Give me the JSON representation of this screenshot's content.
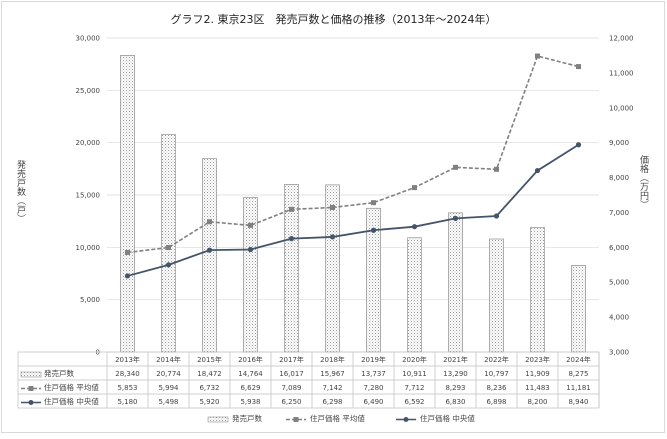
{
  "chart_data": {
    "type": "bar+line",
    "title": "グラフ2. 東京23区　発売戸数と価格の推移（2013年～2024年）",
    "ylabel_left": "発売戸数（戸）",
    "ylabel_right": "価格（万円）",
    "ylim_left": [
      0,
      30000
    ],
    "ylim_right": [
      3000,
      12000
    ],
    "left_ticks": [
      "0",
      "5,000",
      "10,000",
      "15,000",
      "20,000",
      "25,000",
      "30,000"
    ],
    "right_ticks": [
      "3,000",
      "4,000",
      "5,000",
      "6,000",
      "7,000",
      "8,000",
      "9,000",
      "10,000",
      "11,000",
      "12,000"
    ],
    "grid": true,
    "legend": "bottom",
    "categories": [
      "2013年",
      "2014年",
      "2015年",
      "2016年",
      "2017年",
      "2018年",
      "2019年",
      "2020年",
      "2021年",
      "2022年",
      "2023年",
      "2024年"
    ],
    "series": [
      {
        "name": "発売戸数",
        "type": "bar",
        "axis": "left",
        "values": [
          28340,
          20774,
          18472,
          14764,
          16017,
          15967,
          13737,
          10911,
          13290,
          10797,
          11909,
          8275
        ],
        "labels": [
          "28,340",
          "20,774",
          "18,472",
          "14,764",
          "16,017",
          "15,967",
          "13,737",
          "10,911",
          "13,290",
          "10,797",
          "11,909",
          "8,275"
        ]
      },
      {
        "name": "住戸価格 平均値",
        "type": "line",
        "axis": "right",
        "color": "#808080",
        "dashed": true,
        "values": [
          5853,
          5994,
          6732,
          6629,
          7089,
          7142,
          7280,
          7712,
          8293,
          8236,
          11483,
          11181
        ],
        "labels": [
          "5,853",
          "5,994",
          "6,732",
          "6,629",
          "7,089",
          "7,142",
          "7,280",
          "7,712",
          "8,293",
          "8,236",
          "11,483",
          "11,181"
        ]
      },
      {
        "name": "住戸価格 中央値",
        "type": "line",
        "axis": "right",
        "color": "#44546a",
        "dashed": false,
        "values": [
          5180,
          5498,
          5920,
          5938,
          6250,
          6298,
          6490,
          6592,
          6830,
          6898,
          8200,
          8940
        ],
        "labels": [
          "5,180",
          "5,498",
          "5,920",
          "5,938",
          "6,250",
          "6,298",
          "6,490",
          "6,592",
          "6,830",
          "6,898",
          "8,200",
          "8,940"
        ]
      }
    ]
  }
}
